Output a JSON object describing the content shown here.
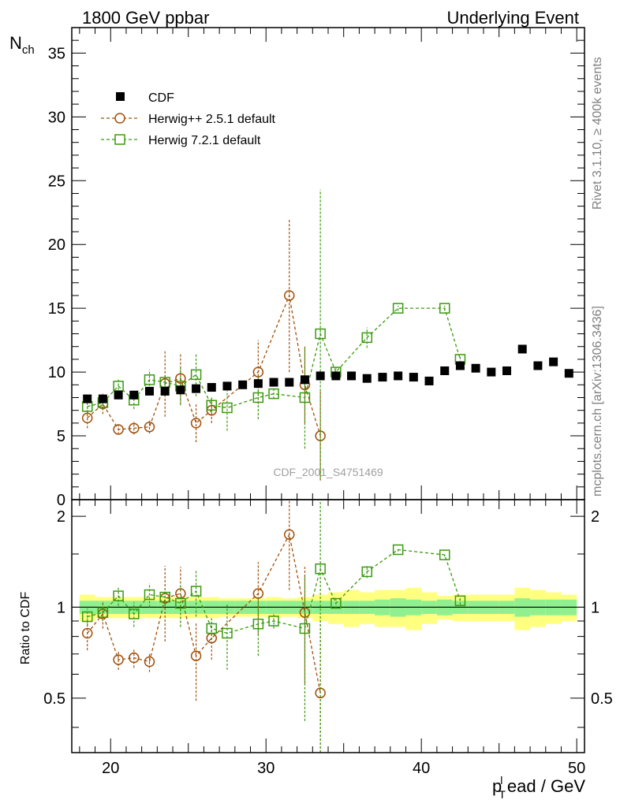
{
  "header": {
    "left_label": "1800 GeV ppbar",
    "right_label": "Underlying Event"
  },
  "side_text": {
    "rivet": "Rivet 3.1.10, ≥ 400k events",
    "mcplots": "mcplots.cern.ch [arXiv:1306.3436]"
  },
  "watermark": "CDF_2001_S4751469",
  "chart_data": [
    {
      "type": "scatter",
      "panel": "main",
      "ylabel_main": "N",
      "ylabel_sub": "ch",
      "xlim": [
        17.5,
        50.5
      ],
      "ylim": [
        0,
        37
      ],
      "yticks": [
        0,
        5,
        10,
        15,
        20,
        25,
        30,
        35
      ],
      "yticklabels": [
        "0",
        "5",
        "10",
        "15",
        "20",
        "25",
        "30",
        "35"
      ],
      "legend": [
        "CDF",
        "Herwig++ 2.5.1 default",
        "Herwig 7.2.1 default"
      ],
      "legend_position": "top-left",
      "series": [
        {
          "name": "CDF",
          "color": "#000000",
          "marker": "filled-square",
          "x": [
            18.5,
            19.5,
            20.5,
            21.5,
            22.5,
            23.5,
            24.5,
            25.5,
            26.5,
            27.5,
            28.5,
            29.5,
            30.5,
            31.5,
            32.5,
            33.5,
            34.5,
            35.5,
            36.5,
            37.5,
            38.5,
            39.5,
            40.5,
            41.5,
            42.5,
            43.5,
            44.5,
            45.5,
            46.5,
            47.5,
            48.5,
            49.5
          ],
          "y": [
            7.9,
            7.9,
            8.2,
            8.2,
            8.5,
            8.5,
            8.6,
            8.7,
            8.8,
            8.9,
            9.0,
            9.1,
            9.2,
            9.2,
            9.4,
            9.7,
            9.7,
            9.7,
            9.5,
            9.6,
            9.7,
            9.6,
            9.3,
            10.1,
            10.5,
            10.3,
            10.0,
            10.1,
            11.8,
            10.5,
            10.8,
            9.9
          ]
        },
        {
          "name": "Herwig++ 2.5.1 default",
          "color": "#a0500a",
          "marker": "open-circle",
          "x": [
            18.5,
            19.5,
            20.5,
            21.5,
            22.5,
            23.5,
            24.5,
            25.5,
            26.5,
            29.5,
            31.5,
            32.5,
            33.5
          ],
          "y": [
            6.4,
            7.5,
            5.5,
            5.6,
            5.7,
            9.1,
            9.5,
            6.0,
            7.0,
            10.0,
            16.0,
            9.0,
            5.0
          ],
          "yerr": [
            0.8,
            0.8,
            0.4,
            0.5,
            0.5,
            2.6,
            2.0,
            1.5,
            1.0,
            2.5,
            6.0,
            3.0,
            3.5
          ]
        },
        {
          "name": "Herwig 7.2.1 default",
          "color": "#3a9a10",
          "marker": "open-square",
          "x": [
            18.5,
            19.5,
            20.5,
            21.5,
            22.5,
            23.5,
            24.5,
            25.5,
            26.5,
            27.5,
            29.5,
            30.5,
            32.5,
            33.5,
            34.5,
            36.5,
            38.5,
            41.5,
            42.5
          ],
          "y": [
            7.3,
            7.6,
            8.9,
            7.8,
            9.4,
            9.2,
            8.9,
            9.8,
            7.4,
            7.2,
            8.0,
            8.3,
            8.0,
            13.0,
            10.0,
            12.7,
            15.0,
            15.0,
            11.0
          ],
          "yerr": [
            0.5,
            0.5,
            0.6,
            0.7,
            0.8,
            0.6,
            1.5,
            1.7,
            0.6,
            1.8,
            1.7,
            0.4,
            4.0,
            11.3,
            0.4,
            0.8,
            0.2,
            0.2,
            0.3
          ]
        }
      ]
    },
    {
      "type": "scatter",
      "panel": "ratio",
      "ylabel": "Ratio to CDF",
      "xlabel": "p",
      "xlabel_sub": "T",
      "xlabel_sup": "l",
      "xlabel_rest": "ead / GeV",
      "xlim": [
        17.5,
        50.5
      ],
      "ylim": [
        0.33,
        2.27
      ],
      "xticks": [
        20,
        30,
        40,
        50
      ],
      "xticklabels": [
        "20",
        "30",
        "40",
        "50"
      ],
      "yticks": [
        0.5,
        1,
        2
      ],
      "yticklabels": [
        "0.5",
        "1",
        "2"
      ],
      "bands": {
        "x": [
          18.5,
          19.5,
          20.5,
          21.5,
          22.5,
          23.5,
          24.5,
          25.5,
          26.5,
          27.5,
          28.5,
          29.5,
          30.5,
          31.5,
          32.5,
          33.5,
          34.5,
          35.5,
          36.5,
          37.5,
          38.5,
          39.5,
          40.5,
          41.5,
          42.5,
          43.5,
          44.5,
          45.5,
          46.5,
          47.5,
          48.5,
          49.5
        ],
        "stat": [
          0.05,
          0.05,
          0.05,
          0.05,
          0.05,
          0.05,
          0.05,
          0.05,
          0.05,
          0.05,
          0.05,
          0.05,
          0.05,
          0.05,
          0.05,
          0.05,
          0.05,
          0.05,
          0.05,
          0.06,
          0.07,
          0.06,
          0.05,
          0.06,
          0.05,
          0.05,
          0.05,
          0.05,
          0.07,
          0.06,
          0.06,
          0.06
        ],
        "total": [
          0.1,
          0.08,
          0.08,
          0.08,
          0.08,
          0.08,
          0.08,
          0.08,
          0.08,
          0.07,
          0.07,
          0.07,
          0.08,
          0.07,
          0.08,
          0.1,
          0.12,
          0.14,
          0.12,
          0.14,
          0.14,
          0.16,
          0.12,
          0.09,
          0.1,
          0.1,
          0.1,
          0.1,
          0.16,
          0.14,
          0.12,
          0.1
        ]
      },
      "series": [
        {
          "name": "Herwig++ 2.5.1 default",
          "color": "#a0500a",
          "marker": "open-circle",
          "x": [
            18.5,
            19.5,
            20.5,
            21.5,
            22.5,
            23.5,
            24.5,
            25.5,
            26.5,
            29.5,
            31.5,
            32.5,
            33.5
          ],
          "y": [
            0.82,
            0.95,
            0.67,
            0.68,
            0.66,
            1.07,
            1.11,
            0.69,
            0.79,
            1.11,
            1.74,
            0.96,
            0.52
          ],
          "yerr": [
            0.1,
            0.1,
            0.05,
            0.05,
            0.05,
            0.3,
            0.25,
            0.2,
            0.12,
            0.3,
            0.6,
            0.4,
            0.4
          ]
        },
        {
          "name": "Herwig 7.2.1 default",
          "color": "#3a9a10",
          "marker": "open-square",
          "x": [
            18.5,
            19.5,
            20.5,
            21.5,
            22.5,
            23.5,
            24.5,
            25.5,
            26.5,
            27.5,
            29.5,
            30.5,
            32.5,
            33.5,
            34.5,
            36.5,
            38.5,
            41.5,
            42.5
          ],
          "y": [
            0.93,
            0.96,
            1.09,
            0.95,
            1.1,
            1.08,
            1.03,
            1.13,
            0.85,
            0.82,
            0.88,
            0.9,
            0.85,
            1.34,
            1.03,
            1.31,
            1.55,
            1.49,
            1.05
          ],
          "yerr": [
            0.06,
            0.06,
            0.08,
            0.09,
            0.1,
            0.07,
            0.17,
            0.2,
            0.07,
            0.2,
            0.19,
            0.05,
            0.43,
            1.2,
            0.04,
            0.06,
            0.02,
            0.02,
            0.03
          ]
        }
      ]
    }
  ]
}
